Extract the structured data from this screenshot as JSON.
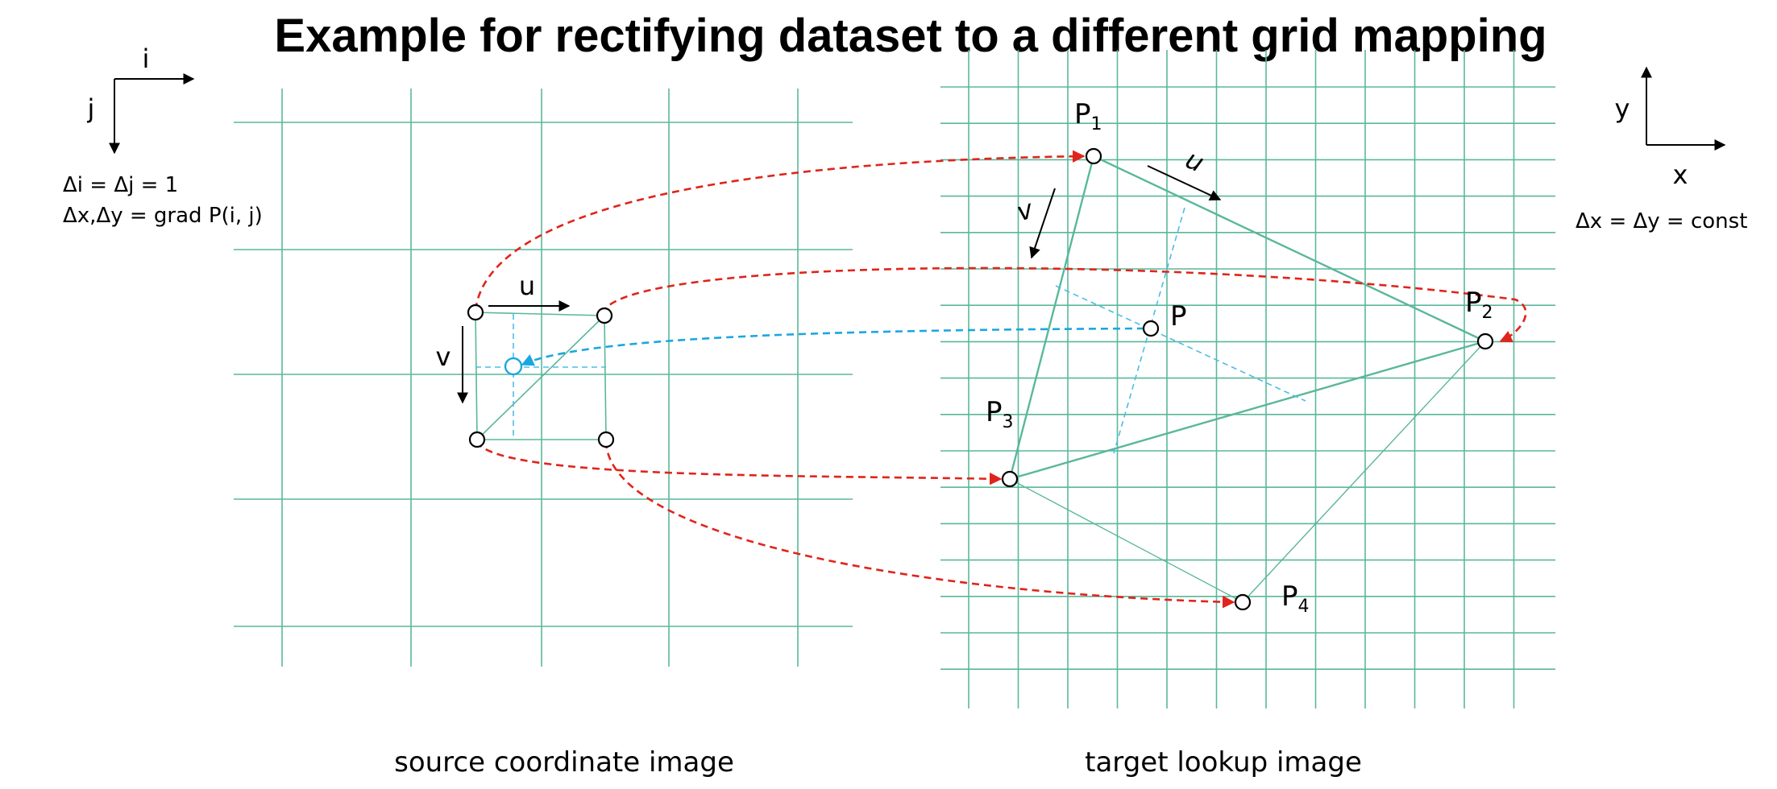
{
  "title": "Example for rectifying dataset to a different grid mapping",
  "source": {
    "axis_i": "i",
    "axis_j": "j",
    "note_1": "Δi = Δj = 1",
    "note_2": "Δx,Δy = grad P(i, j)",
    "vector_u": "u",
    "vector_v": "v",
    "caption": "source coordinate image"
  },
  "target": {
    "axis_x": "x",
    "axis_y": "y",
    "note": "Δx = Δy = const",
    "vector_u": "u",
    "vector_v": "v",
    "point_p": "P",
    "points": [
      {
        "letter": "P",
        "sub": "1"
      },
      {
        "letter": "P",
        "sub": "2"
      },
      {
        "letter": "P",
        "sub": "3"
      },
      {
        "letter": "P",
        "sub": "4"
      }
    ],
    "caption": "target lookup image"
  },
  "colors": {
    "grid": "#5ab79b",
    "mapping_arrows": "#e0241b",
    "lookup_arrow": "#1aa7e0"
  }
}
